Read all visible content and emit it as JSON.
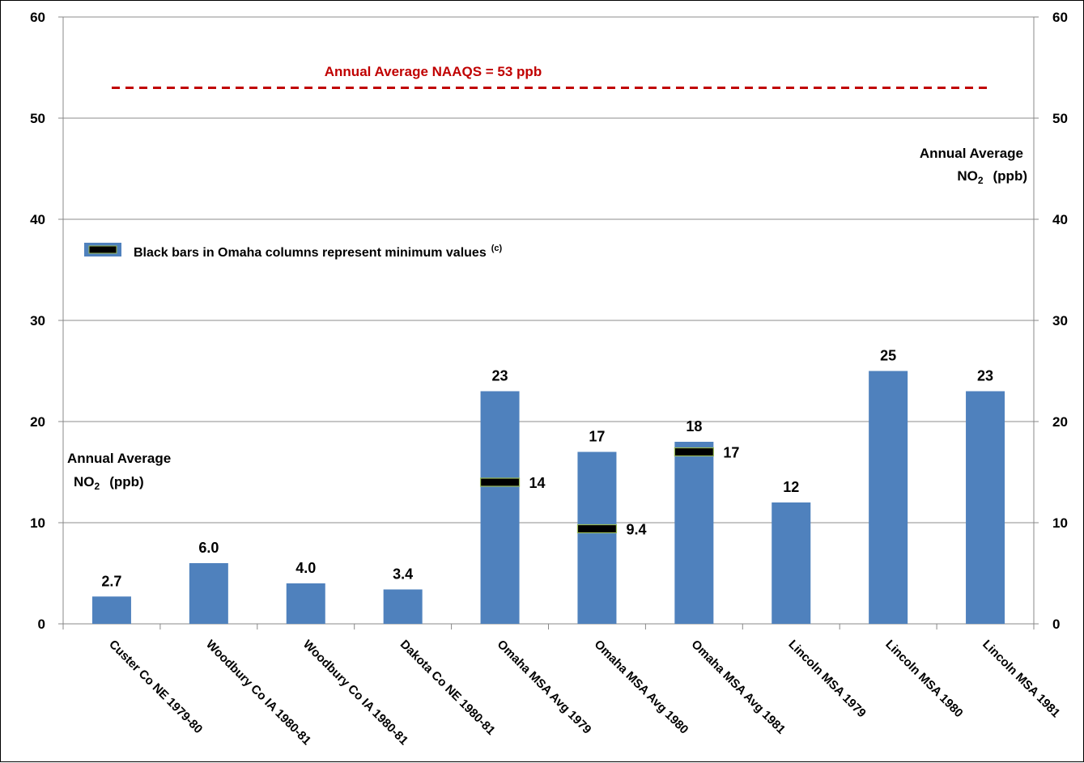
{
  "chart_data": {
    "type": "bar",
    "categories": [
      "Custer Co NE 1979-80",
      "Woodbury Co IA 1980-81",
      "Woodbury Co IA 1980-81",
      "Dakota Co NE 1980-81",
      "Omaha MSA Avg 1979",
      "Omaha MSA Avg 1980",
      "Omaha MSA Avg 1981",
      "Lincoln MSA 1979",
      "Lincoln MSA 1980",
      "Lincoln MSA 1981"
    ],
    "values": [
      2.7,
      6.0,
      4.0,
      3.4,
      23,
      17,
      18,
      12,
      25,
      23
    ],
    "value_labels": [
      "2.7",
      "6.0",
      "4.0",
      "3.4",
      "23",
      "17",
      "18",
      "12",
      "25",
      "23"
    ],
    "minimum_markers": [
      {
        "category_index": 4,
        "value": 14,
        "label": "14"
      },
      {
        "category_index": 5,
        "value": 9.4,
        "label": "9.4"
      },
      {
        "category_index": 6,
        "value": 17,
        "label": "17"
      }
    ],
    "reference_line": {
      "value": 53,
      "label": "Annual Average NAAQS = 53 ppb",
      "color": "#c00000",
      "style": "dashed"
    },
    "ylim": [
      0,
      60
    ],
    "yticks": [
      0,
      10,
      20,
      30,
      40,
      50,
      60
    ],
    "left_axis_label": {
      "line1": "Annual Average",
      "line2_main": "NO",
      "line2_sub": "2",
      "line2_tail": "(ppb)"
    },
    "right_axis_label": {
      "line1": "Annual Average",
      "line2_main": "NO",
      "line2_sub": "2",
      "line2_tail": "(ppb)"
    },
    "legend": {
      "text": "Black bars in  Omaha columns represent minimum  values",
      "superscript": "(c)"
    },
    "grid": true,
    "colors": {
      "bar": "#4f81bd",
      "marker": "#000000",
      "marker_outline": "#9bbb59",
      "grid": "#8c8c8c",
      "reference": "#c00000"
    }
  }
}
